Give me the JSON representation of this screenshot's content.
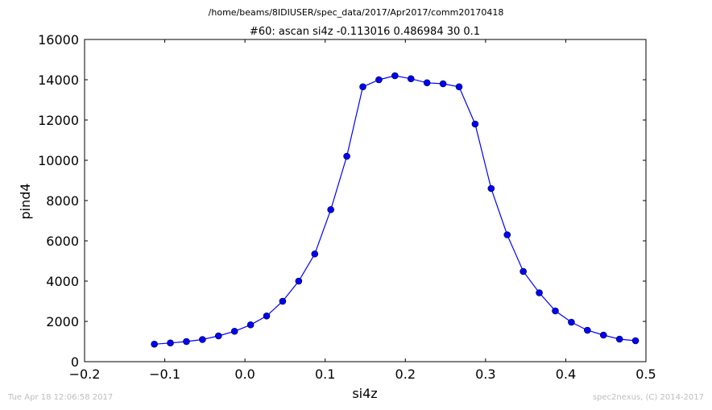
{
  "header": {
    "path": "/home/beams/8IDIUSER/spec_data/2017/Apr2017/comm20170418",
    "scan_title": "#60: ascan  si4z -0.113016 0.486984  30 0.1"
  },
  "footer": {
    "timestamp": "Tue Apr 18 12:06:58 2017",
    "credit": "spec2nexus, (C) 2014-2017"
  },
  "chart_data": {
    "type": "line",
    "xlabel": "si4z",
    "ylabel": "pind4",
    "xlim": [
      -0.2,
      0.5
    ],
    "ylim": [
      0,
      16000
    ],
    "x_ticks": [
      -0.2,
      -0.1,
      0.0,
      0.1,
      0.2,
      0.3,
      0.4,
      0.5
    ],
    "x_tick_labels": [
      "−0.2",
      "−0.1",
      "0.0",
      "0.1",
      "0.2",
      "0.3",
      "0.4",
      "0.5"
    ],
    "y_ticks": [
      0,
      2000,
      4000,
      6000,
      8000,
      10000,
      12000,
      14000,
      16000
    ],
    "y_tick_labels": [
      "0",
      "2000",
      "4000",
      "6000",
      "8000",
      "10000",
      "12000",
      "14000",
      "16000"
    ],
    "grid": false,
    "color": "#0000ff",
    "series": [
      {
        "x": [
          -0.113,
          -0.093,
          -0.073,
          -0.053,
          -0.033,
          -0.013,
          0.007,
          0.027,
          0.047,
          0.067,
          0.087,
          0.107,
          0.127,
          0.147,
          0.167,
          0.187,
          0.207,
          0.227,
          0.247,
          0.267,
          0.287,
          0.307,
          0.327,
          0.347,
          0.367,
          0.387,
          0.407,
          0.427,
          0.447,
          0.467,
          0.487
        ],
        "y": [
          870,
          930,
          1000,
          1100,
          1280,
          1510,
          1830,
          2270,
          3000,
          4000,
          5350,
          7550,
          10200,
          13650,
          14000,
          14200,
          14050,
          13850,
          13800,
          13650,
          11800,
          8600,
          6300,
          4480,
          3420,
          2520,
          1960,
          1560,
          1320,
          1120,
          1040
        ]
      }
    ]
  }
}
